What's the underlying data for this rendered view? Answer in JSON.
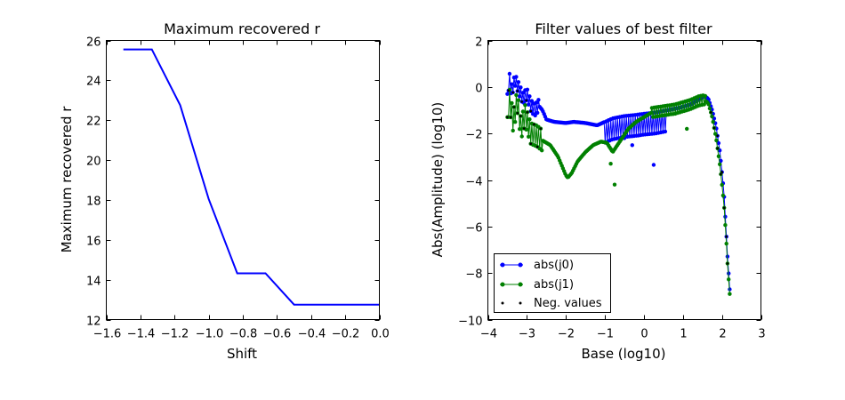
{
  "chart_data": [
    {
      "type": "line",
      "title": "Maximum recovered r",
      "xlabel": "Shift",
      "ylabel": "Maximum recovered r",
      "xlim": [
        -1.6,
        0.0
      ],
      "ylim": [
        12,
        26
      ],
      "xticks": [
        "−1.6",
        "−1.4",
        "−1.2",
        "−1.0",
        "−0.8",
        "−0.6",
        "−0.4",
        "−0.2",
        "0.0"
      ],
      "yticks": [
        "12",
        "14",
        "16",
        "18",
        "20",
        "22",
        "24",
        "26"
      ],
      "grid": false,
      "series": [
        {
          "color": "#0000ff",
          "x": [
            -1.5,
            -1.333,
            -1.167,
            -1.0,
            -0.833,
            -0.667,
            -0.5,
            -0.333,
            -0.167,
            0.0
          ],
          "y": [
            25.55,
            25.55,
            22.75,
            18.05,
            14.32,
            14.32,
            12.75,
            12.75,
            12.75,
            12.75
          ]
        }
      ]
    },
    {
      "type": "line",
      "title": "Filter values of best filter",
      "xlabel": "Base (log10)",
      "ylabel": "Abs(Amplitude) (log10)",
      "xlim": [
        -4,
        3
      ],
      "ylim": [
        -10,
        2
      ],
      "xticks": [
        "−4",
        "−3",
        "−2",
        "−1",
        "0",
        "1",
        "2",
        "3"
      ],
      "yticks": [
        "−10",
        "−8",
        "−6",
        "−4",
        "−2",
        "0",
        "2"
      ],
      "grid": false,
      "legend_position": "lower-left",
      "series": [
        {
          "name": "abs(j0)",
          "color": "#0000ff",
          "marker": "dot-line"
        },
        {
          "name": "abs(j1)",
          "color": "#008000",
          "marker": "dot-line"
        },
        {
          "name": "Neg. values",
          "color": "#000000",
          "marker": "dot"
        }
      ],
      "j0_anchors": [
        [
          -3.5,
          -0.3
        ],
        [
          -3.45,
          0.4
        ],
        [
          -3.4,
          -0.2
        ],
        [
          -3.3,
          0.3
        ],
        [
          -3.2,
          -0.1
        ],
        [
          -3.1,
          -0.5
        ],
        [
          -3.0,
          -0.3
        ],
        [
          -2.9,
          -0.8
        ],
        [
          -2.8,
          -1.0
        ],
        [
          -2.7,
          -0.8
        ],
        [
          -2.6,
          -1.0
        ],
        [
          -2.5,
          -1.4
        ],
        [
          -2.3,
          -1.5
        ],
        [
          -2.0,
          -1.55
        ],
        [
          -1.8,
          -1.5
        ],
        [
          -1.5,
          -1.55
        ],
        [
          -1.2,
          -1.65
        ],
        [
          -1.0,
          -1.5
        ],
        [
          -0.8,
          -1.35
        ],
        [
          -0.5,
          -1.25
        ],
        [
          -0.2,
          -1.2
        ],
        [
          0.0,
          -1.15
        ],
        [
          0.3,
          -1.1
        ],
        [
          0.6,
          -1.0
        ],
        [
          0.9,
          -0.9
        ],
        [
          1.2,
          -0.75
        ],
        [
          1.4,
          -0.55
        ],
        [
          1.55,
          -0.4
        ],
        [
          1.65,
          -0.5
        ],
        [
          1.75,
          -1.0
        ],
        [
          1.85,
          -1.7
        ],
        [
          1.95,
          -2.8
        ],
        [
          2.05,
          -4.5
        ],
        [
          2.1,
          -6.0
        ],
        [
          2.15,
          -7.5
        ],
        [
          2.2,
          -8.7
        ]
      ],
      "j1_anchors": [
        [
          -3.5,
          -1.3
        ],
        [
          -3.45,
          -0.5
        ],
        [
          -3.35,
          -1.5
        ],
        [
          -3.25,
          -0.6
        ],
        [
          -3.15,
          -1.8
        ],
        [
          -3.05,
          -1.2
        ],
        [
          -2.9,
          -2.0
        ],
        [
          -2.75,
          -2.1
        ],
        [
          -2.6,
          -2.3
        ],
        [
          -2.4,
          -2.5
        ],
        [
          -2.2,
          -3.0
        ],
        [
          -2.0,
          -3.8
        ],
        [
          -1.95,
          -3.9
        ],
        [
          -1.85,
          -3.7
        ],
        [
          -1.7,
          -3.2
        ],
        [
          -1.5,
          -2.8
        ],
        [
          -1.3,
          -2.5
        ],
        [
          -1.1,
          -2.35
        ],
        [
          -0.95,
          -2.4
        ],
        [
          -0.8,
          -2.8
        ],
        [
          -0.6,
          -2.3
        ],
        [
          -0.4,
          -1.8
        ],
        [
          -0.2,
          -1.5
        ],
        [
          0.0,
          -1.3
        ],
        [
          0.2,
          -1.1
        ],
        [
          0.4,
          -1.05
        ],
        [
          0.6,
          -1.0
        ],
        [
          0.8,
          -0.95
        ],
        [
          1.0,
          -0.85
        ],
        [
          1.2,
          -0.75
        ],
        [
          1.4,
          -0.6
        ],
        [
          1.55,
          -0.55
        ],
        [
          1.65,
          -0.7
        ],
        [
          1.75,
          -1.3
        ],
        [
          1.85,
          -2.2
        ],
        [
          1.95,
          -3.4
        ],
        [
          2.05,
          -5.0
        ],
        [
          2.1,
          -6.3
        ],
        [
          2.15,
          -7.8
        ],
        [
          2.2,
          -8.9
        ]
      ]
    }
  ]
}
